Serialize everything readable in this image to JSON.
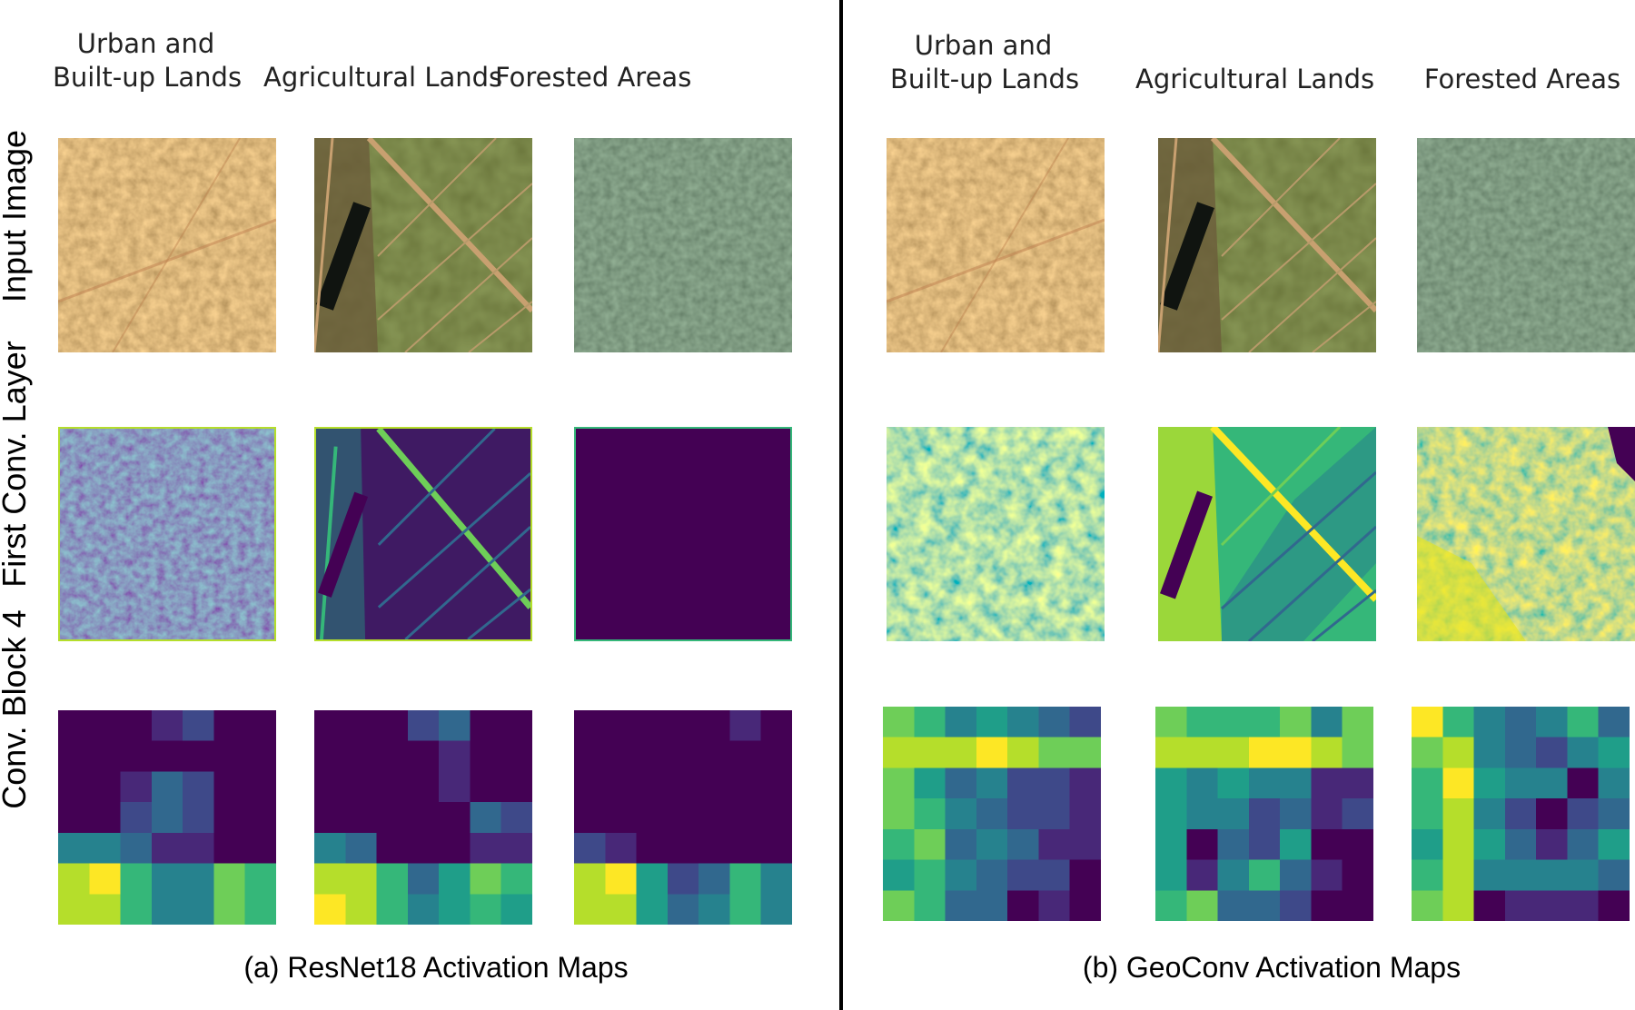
{
  "left": {
    "column_headers": [
      {
        "lines": [
          "Urban and",
          "Built-up Lands"
        ]
      },
      {
        "lines": [
          "Agricultural Lands"
        ]
      },
      {
        "lines": [
          "Forested Areas"
        ]
      }
    ],
    "caption": "(a) ResNet18 Activation Maps"
  },
  "right": {
    "column_headers": [
      {
        "lines": [
          "Urban and",
          "Built-up Lands"
        ]
      },
      {
        "lines": [
          "Agricultural Lands"
        ]
      },
      {
        "lines": [
          "Forested Areas"
        ]
      }
    ],
    "caption": "(b) GeoConv Activation Maps"
  },
  "row_labels": [
    "Input Image",
    "First Conv. Layer",
    "Conv. Block 4"
  ],
  "viridis": [
    "#440154",
    "#482878",
    "#3e4989",
    "#31688e",
    "#26828e",
    "#1f9e89",
    "#35b779",
    "#6ece58",
    "#b5de2b",
    "#fde725"
  ],
  "block4_grids": {
    "resnet_urban": [
      [
        0,
        0,
        0,
        1,
        2,
        0,
        0
      ],
      [
        0,
        0,
        0,
        0,
        0,
        0,
        0
      ],
      [
        0,
        0,
        1,
        3,
        2,
        0,
        0
      ],
      [
        0,
        0,
        2,
        3,
        2,
        0,
        0
      ],
      [
        4,
        4,
        3,
        1,
        1,
        0,
        0
      ],
      [
        8,
        9,
        6,
        4,
        4,
        7,
        6
      ],
      [
        8,
        8,
        6,
        4,
        4,
        7,
        6
      ]
    ],
    "resnet_agri": [
      [
        0,
        0,
        0,
        2,
        3,
        0,
        0
      ],
      [
        0,
        0,
        0,
        0,
        1,
        0,
        0
      ],
      [
        0,
        0,
        0,
        0,
        1,
        0,
        0
      ],
      [
        0,
        0,
        0,
        0,
        0,
        3,
        2
      ],
      [
        4,
        3,
        0,
        0,
        0,
        1,
        1
      ],
      [
        8,
        8,
        6,
        3,
        5,
        7,
        6
      ],
      [
        9,
        8,
        6,
        4,
        5,
        6,
        5
      ]
    ],
    "resnet_forest": [
      [
        0,
        0,
        0,
        0,
        0,
        1,
        0
      ],
      [
        0,
        0,
        0,
        0,
        0,
        0,
        0
      ],
      [
        0,
        0,
        0,
        0,
        0,
        0,
        0
      ],
      [
        0,
        0,
        0,
        0,
        0,
        0,
        0
      ],
      [
        2,
        1,
        0,
        0,
        0,
        0,
        0
      ],
      [
        8,
        9,
        5,
        2,
        3,
        6,
        4
      ],
      [
        8,
        8,
        5,
        3,
        4,
        6,
        4
      ]
    ],
    "geo_urban": [
      [
        7,
        6,
        4,
        5,
        4,
        3,
        2
      ],
      [
        8,
        8,
        8,
        9,
        8,
        7,
        7
      ],
      [
        7,
        5,
        3,
        4,
        2,
        2,
        1
      ],
      [
        7,
        6,
        4,
        3,
        2,
        2,
        1
      ],
      [
        6,
        7,
        3,
        4,
        3,
        1,
        1
      ],
      [
        5,
        6,
        4,
        3,
        2,
        2,
        0
      ],
      [
        7,
        6,
        3,
        3,
        0,
        1,
        0
      ]
    ],
    "geo_agri": [
      [
        7,
        6,
        6,
        6,
        7,
        4,
        7
      ],
      [
        8,
        8,
        8,
        9,
        9,
        8,
        7
      ],
      [
        5,
        4,
        5,
        4,
        4,
        1,
        1
      ],
      [
        5,
        4,
        4,
        2,
        3,
        1,
        2
      ],
      [
        5,
        0,
        3,
        2,
        5,
        0,
        0
      ],
      [
        5,
        1,
        4,
        6,
        3,
        1,
        0
      ],
      [
        6,
        7,
        3,
        3,
        2,
        0,
        0
      ]
    ],
    "geo_forest": [
      [
        9,
        6,
        4,
        3,
        4,
        6,
        3
      ],
      [
        7,
        8,
        4,
        3,
        2,
        4,
        5
      ],
      [
        6,
        9,
        5,
        4,
        4,
        0,
        4
      ],
      [
        6,
        8,
        4,
        2,
        0,
        2,
        3
      ],
      [
        5,
        8,
        5,
        3,
        1,
        3,
        5
      ],
      [
        6,
        8,
        4,
        4,
        4,
        4,
        3
      ],
      [
        7,
        8,
        0,
        1,
        1,
        1,
        0
      ]
    ]
  }
}
